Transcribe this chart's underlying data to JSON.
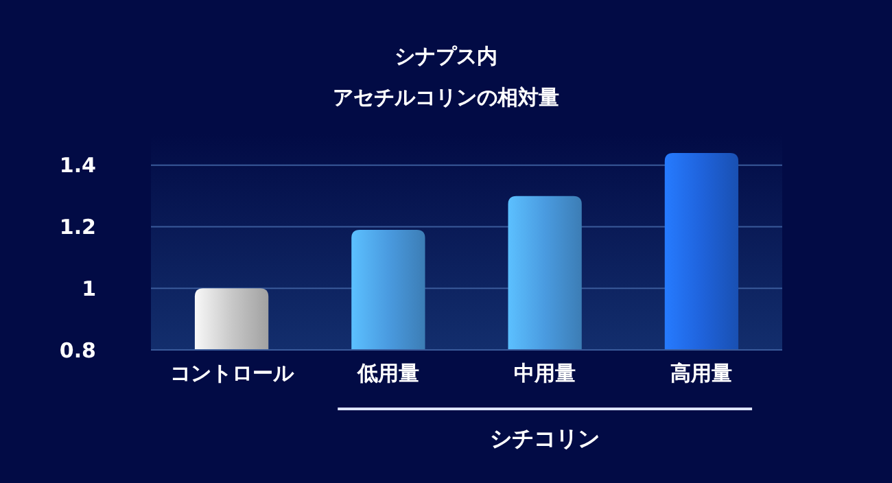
{
  "chart_data": {
    "type": "bar",
    "title": "シナプス内",
    "subtitle": "アセチルコリンの相対量",
    "categories": [
      "コントロール",
      "低用量",
      "中用量",
      "高用量"
    ],
    "values": [
      1.0,
      1.19,
      1.3,
      1.44
    ],
    "colors": [
      "#c8c8c8",
      "#4a9be0",
      "#4a9be0",
      "#1f63dc"
    ],
    "xlabel": "シチコリン",
    "ylim": [
      0.8,
      1.5
    ],
    "yticks": [
      {
        "value": 0.8,
        "label": "0.8"
      },
      1,
      {
        "value": 1.2,
        "label": "1.2"
      },
      {
        "value": 1.4,
        "label": "1.4"
      }
    ],
    "grid": "y"
  }
}
